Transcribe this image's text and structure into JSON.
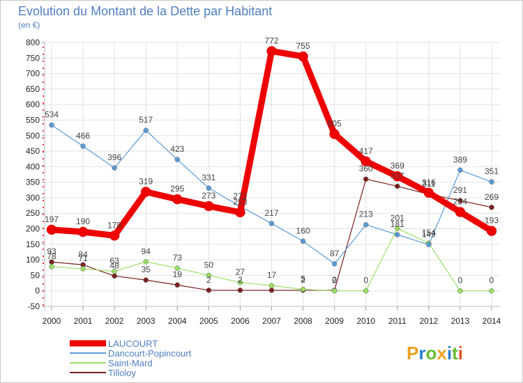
{
  "chart_data": {
    "type": "line",
    "title": "Evolution du Montant de la Dette par Habitant",
    "subtitle": "(en €)",
    "x": [
      "2000",
      "2001",
      "2002",
      "2003",
      "2004",
      "2005",
      "2006",
      "2007",
      "2008",
      "2009",
      "2010",
      "2011",
      "2012",
      "2013",
      "2014"
    ],
    "ylim": [
      -50,
      800
    ],
    "yticks": [
      -50,
      0,
      50,
      100,
      150,
      200,
      250,
      300,
      350,
      400,
      450,
      500,
      550,
      600,
      650,
      700,
      750,
      800
    ],
    "grid": true,
    "legend_position": "bottom-left",
    "series": [
      {
        "name": "LAUCOURT",
        "color": "#ee0000",
        "values": [
          197,
          190,
          178,
          319,
          295,
          273,
          253,
          772,
          755,
          505,
          417,
          369,
          316,
          254,
          193
        ],
        "labels": [
          "197",
          "190",
          "178",
          "319",
          "295",
          "273",
          "253",
          "772",
          "755",
          "505",
          "417",
          "369",
          "316",
          "254",
          "193"
        ]
      },
      {
        "name": "Dancourt-Popincourt",
        "color": "#5b9bd5",
        "values": [
          534,
          466,
          396,
          517,
          423,
          331,
          272,
          217,
          160,
          87,
          213,
          181,
          149,
          389,
          351
        ],
        "labels": [
          "534",
          "466",
          "396",
          "517",
          "423",
          "331",
          "272",
          "217",
          "160",
          "87",
          "213",
          "181",
          "149",
          "389",
          "351"
        ]
      },
      {
        "name": "Saint-Mard",
        "color": "#99dd66",
        "values": [
          78,
          71,
          63,
          94,
          73,
          50,
          27,
          17,
          5,
          0,
          0,
          201,
          154,
          0,
          0
        ],
        "labels": [
          "78",
          "71",
          "63",
          "94",
          "73",
          "50",
          "27",
          "17",
          "5",
          "0",
          "0",
          "201",
          "154",
          "0",
          "0"
        ]
      },
      {
        "name": "Tilloloy",
        "color": "#7b2020",
        "values": [
          93,
          84,
          48,
          35,
          19,
          2,
          2,
          2,
          2,
          2,
          360,
          337,
          311,
          291,
          269
        ],
        "labels": [
          "93",
          "84",
          "48",
          "35",
          "19",
          "2",
          "2",
          "",
          "2",
          "2",
          "360",
          "337",
          "311",
          "291",
          "269"
        ]
      }
    ]
  },
  "brand": {
    "text": "Proxiti",
    "colors": [
      "#f0a020",
      "#2a7fd0",
      "#66bb33",
      "#f0a020",
      "#2a7fd0",
      "#66bb33",
      "#e05020"
    ]
  }
}
